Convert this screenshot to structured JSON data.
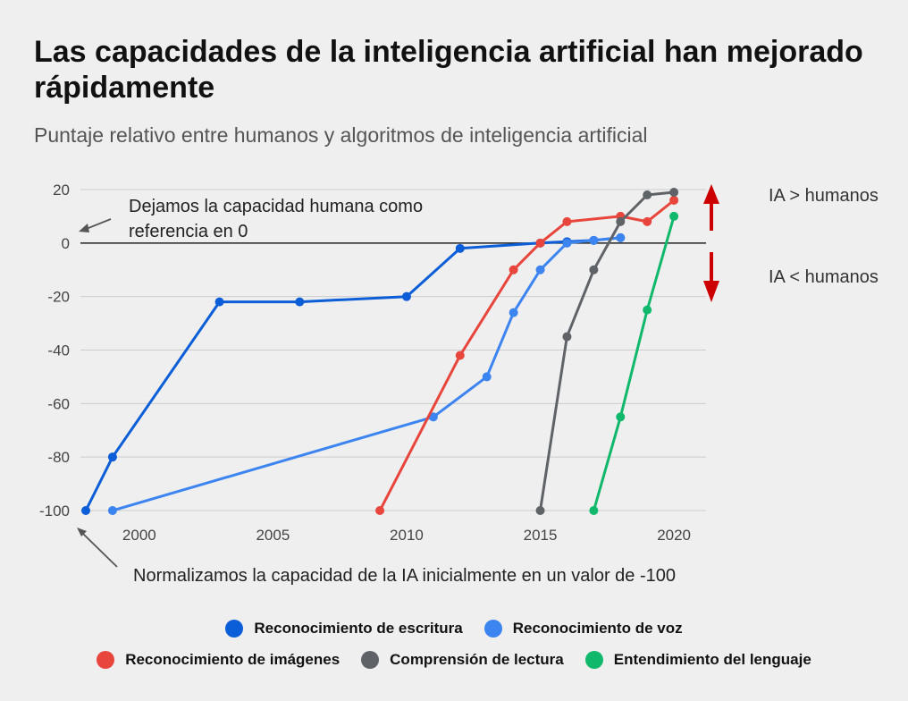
{
  "title": "Las capacidades de la inteligencia artificial han mejorado rápidamente",
  "subtitle": "Puntaje relativo entre humanos y algoritmos de inteligencia artificial",
  "annotations": {
    "reference_line1": "Dejamos la capacidad humana como",
    "reference_line2": "referencia en 0",
    "normalize": "Normalizamos la capacidad de la IA inicialmente en un valor de -100",
    "above": "IA > humanos",
    "below": "IA < humanos"
  },
  "colors": {
    "arrow": "#cc0000",
    "grid": "#cccccc",
    "zero_line": "#222222"
  },
  "chart_data": {
    "type": "line",
    "title": "Las capacidades de la inteligencia artificial han mejorado rápidamente",
    "subtitle": "Puntaje relativo entre humanos y algoritmos de inteligencia artificial",
    "xlabel": "",
    "ylabel": "",
    "xlim": [
      1998,
      2021.2
    ],
    "ylim": [
      -100,
      20
    ],
    "x_ticks": [
      2000,
      2005,
      2010,
      2015,
      2020
    ],
    "y_ticks": [
      20,
      0,
      -20,
      -40,
      -60,
      -80,
      -100
    ],
    "grid": true,
    "legend_position": "bottom",
    "series": [
      {
        "name": "Reconocimiento de escritura",
        "color": "#0b5ed7",
        "points": [
          [
            1998,
            -100
          ],
          [
            1999,
            -80
          ],
          [
            2003,
            -22
          ],
          [
            2006,
            -22
          ],
          [
            2010,
            -20
          ],
          [
            2012,
            -2
          ],
          [
            2015,
            0
          ],
          [
            2016,
            0.5
          ],
          [
            2017,
            1
          ],
          [
            2018,
            2
          ]
        ]
      },
      {
        "name": "Reconocimiento de voz",
        "color": "#3c84f0",
        "points": [
          [
            1999,
            -100
          ],
          [
            2011,
            -65
          ],
          [
            2013,
            -50
          ],
          [
            2014,
            -26
          ],
          [
            2015,
            -10
          ],
          [
            2016,
            0
          ],
          [
            2017,
            1
          ],
          [
            2018,
            2
          ]
        ]
      },
      {
        "name": "Reconocimiento de imágenes",
        "color": "#e8453c",
        "points": [
          [
            2009,
            -100
          ],
          [
            2012,
            -42
          ],
          [
            2014,
            -10
          ],
          [
            2015,
            0
          ],
          [
            2016,
            8
          ],
          [
            2018,
            10
          ],
          [
            2019,
            8
          ],
          [
            2020,
            16
          ]
        ]
      },
      {
        "name": "Comprensión de lectura",
        "color": "#5f6368",
        "points": [
          [
            2015,
            -100
          ],
          [
            2016,
            -35
          ],
          [
            2017,
            -10
          ],
          [
            2018,
            8
          ],
          [
            2019,
            18
          ],
          [
            2020,
            19
          ]
        ]
      },
      {
        "name": "Entendimiento del lenguaje",
        "color": "#0fb86a",
        "points": [
          [
            2017,
            -100
          ],
          [
            2018,
            -65
          ],
          [
            2019,
            -25
          ],
          [
            2020,
            10
          ]
        ]
      }
    ]
  }
}
